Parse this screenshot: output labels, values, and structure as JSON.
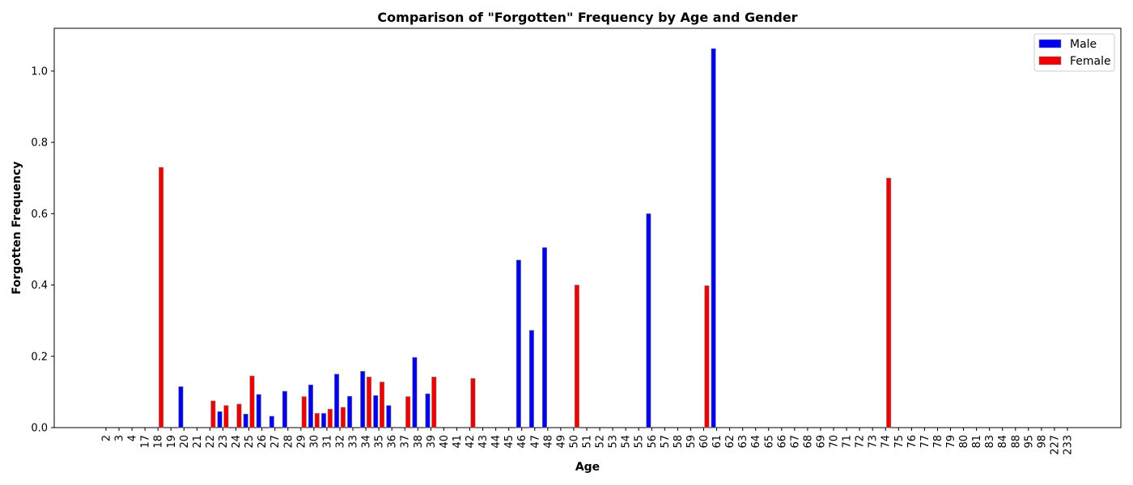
{
  "chart_data": {
    "type": "bar",
    "title": "Comparison of \"Forgotten\" Frequency by Age and Gender",
    "xlabel": "Age",
    "ylabel": "Forgotten Frequency",
    "ylim": [
      0,
      1.12
    ],
    "yticks": [
      "0.0",
      "0.2",
      "0.4",
      "0.6",
      "0.8",
      "1.0"
    ],
    "legend_position": "top-right",
    "categories": [
      "2",
      "3",
      "4",
      "17",
      "18",
      "19",
      "20",
      "21",
      "22",
      "23",
      "24",
      "25",
      "26",
      "27",
      "28",
      "29",
      "30",
      "31",
      "32",
      "33",
      "34",
      "35",
      "36",
      "37",
      "38",
      "39",
      "40",
      "41",
      "42",
      "43",
      "44",
      "45",
      "46",
      "47",
      "48",
      "49",
      "50",
      "51",
      "52",
      "53",
      "54",
      "55",
      "56",
      "57",
      "58",
      "59",
      "60",
      "61",
      "62",
      "63",
      "64",
      "65",
      "66",
      "67",
      "68",
      "69",
      "70",
      "71",
      "72",
      "73",
      "74",
      "75",
      "76",
      "77",
      "78",
      "79",
      "80",
      "81",
      "83",
      "84",
      "88",
      "95",
      "98",
      "227",
      "233"
    ],
    "series": [
      {
        "name": "Male",
        "color": "#0000ee",
        "values": [
          0,
          0,
          0,
          0,
          0,
          0,
          0.115,
          0,
          0,
          0.045,
          0,
          0.038,
          0.093,
          0.032,
          0.102,
          0,
          0.12,
          0.04,
          0.15,
          0.088,
          0.158,
          0.09,
          0.062,
          0,
          0.197,
          0.095,
          0,
          0,
          0,
          0,
          0,
          0,
          0.47,
          0.273,
          0.505,
          0,
          0,
          0,
          0,
          0,
          0,
          0,
          0.6,
          0,
          0,
          0,
          0,
          1.063,
          0,
          0,
          0,
          0,
          0,
          0,
          0,
          0,
          0,
          0,
          0,
          0,
          0,
          0,
          0,
          0,
          0,
          0,
          0,
          0,
          0,
          0,
          0,
          0,
          0,
          0,
          0
        ]
      },
      {
        "name": "Female",
        "color": "#ee0000",
        "values": [
          0,
          0,
          0,
          0,
          0.73,
          0,
          0,
          0,
          0.075,
          0.062,
          0.066,
          0.145,
          0,
          0,
          0,
          0.087,
          0.04,
          0.052,
          0.057,
          0,
          0.142,
          0.128,
          0,
          0.087,
          0,
          0.142,
          0,
          0,
          0.138,
          0,
          0,
          0,
          0,
          0,
          0,
          0,
          0.4,
          0,
          0,
          0,
          0,
          0,
          0,
          0,
          0,
          0,
          0.398,
          0,
          0,
          0,
          0,
          0,
          0,
          0,
          0,
          0,
          0,
          0,
          0,
          0,
          0.7,
          0,
          0,
          0,
          0,
          0,
          0,
          0,
          0,
          0,
          0,
          0,
          0,
          0,
          0
        ]
      }
    ]
  }
}
